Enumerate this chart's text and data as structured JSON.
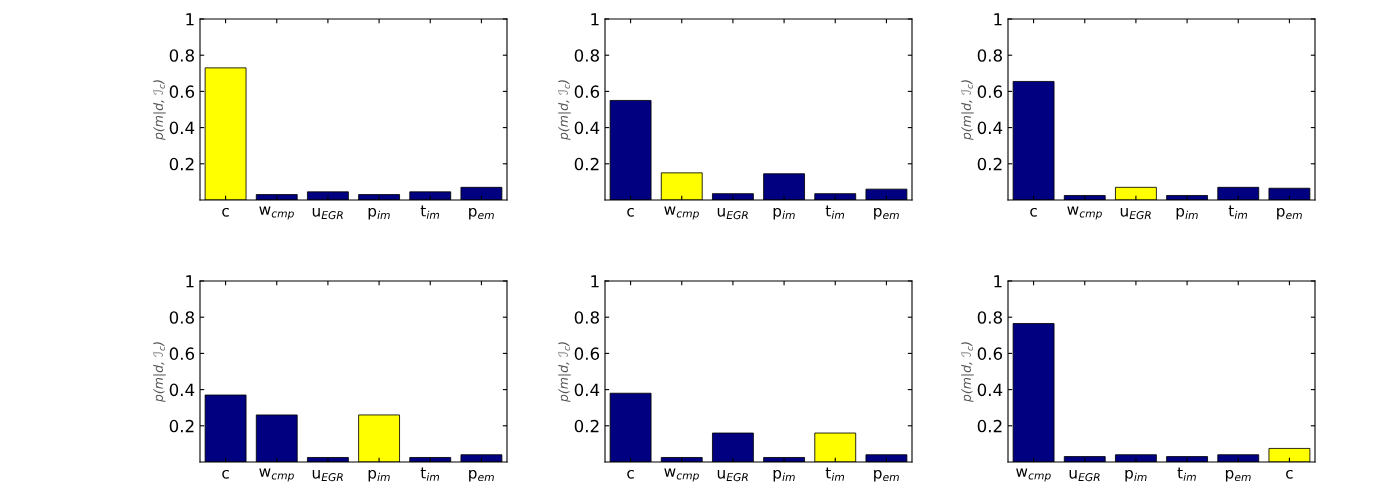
{
  "chart_data": [
    {
      "type": "bar",
      "ylabel": "p(m|d, ℐ$_{c}$)",
      "categories": [
        "c",
        "w$_{cmp}$",
        "u$_{EGR}$",
        "p$_{im}$",
        "t$_{im}$",
        "p$_{em}$"
      ],
      "values": [
        0.73,
        0.03,
        0.045,
        0.03,
        0.045,
        0.07
      ],
      "colors": [
        "#ffff00",
        "#000080",
        "#000080",
        "#000080",
        "#000080",
        "#000080"
      ],
      "ylim": [
        0,
        1
      ],
      "yticks": [
        0.2,
        0.4,
        0.6,
        0.8,
        1
      ],
      "grid": false
    },
    {
      "type": "bar",
      "ylabel": "p(m|d, ℐ$_{c}$)",
      "categories": [
        "c",
        "w$_{cmp}$",
        "u$_{EGR}$",
        "p$_{im}$",
        "t$_{im}$",
        "p$_{em}$"
      ],
      "values": [
        0.55,
        0.15,
        0.035,
        0.145,
        0.035,
        0.06
      ],
      "colors": [
        "#000080",
        "#ffff00",
        "#000080",
        "#000080",
        "#000080",
        "#000080"
      ],
      "ylim": [
        0,
        1
      ],
      "yticks": [
        0.2,
        0.4,
        0.6,
        0.8,
        1
      ],
      "grid": false
    },
    {
      "type": "bar",
      "ylabel": "p(m|d, ℐ$_{c}$)",
      "categories": [
        "c",
        "w$_{cmp}$",
        "u$_{EGR}$",
        "p$_{im}$",
        "t$_{im}$",
        "p$_{em}$"
      ],
      "values": [
        0.655,
        0.025,
        0.07,
        0.025,
        0.07,
        0.065
      ],
      "colors": [
        "#000080",
        "#000080",
        "#ffff00",
        "#000080",
        "#000080",
        "#000080"
      ],
      "ylim": [
        0,
        1
      ],
      "yticks": [
        0.2,
        0.4,
        0.6,
        0.8,
        1
      ],
      "grid": false
    },
    {
      "type": "bar",
      "ylabel": "p(m|d, ℐ$_{c}$)",
      "categories": [
        "c",
        "w$_{cmp}$",
        "u$_{EGR}$",
        "p$_{im}$",
        "t$_{im}$",
        "p$_{em}$"
      ],
      "values": [
        0.37,
        0.26,
        0.025,
        0.26,
        0.025,
        0.04
      ],
      "colors": [
        "#000080",
        "#000080",
        "#000080",
        "#ffff00",
        "#000080",
        "#000080"
      ],
      "ylim": [
        0,
        1
      ],
      "yticks": [
        0.2,
        0.4,
        0.6,
        0.8,
        1
      ],
      "grid": false
    },
    {
      "type": "bar",
      "ylabel": "p(m|d, ℐ$_{c}$)",
      "categories": [
        "c",
        "w$_{cmp}$",
        "u$_{EGR}$",
        "p$_{im}$",
        "t$_{im}$",
        "p$_{em}$"
      ],
      "values": [
        0.38,
        0.025,
        0.16,
        0.025,
        0.16,
        0.04
      ],
      "colors": [
        "#000080",
        "#000080",
        "#000080",
        "#000080",
        "#ffff00",
        "#000080"
      ],
      "ylim": [
        0,
        1
      ],
      "yticks": [
        0.2,
        0.4,
        0.6,
        0.8,
        1
      ],
      "grid": false
    },
    {
      "type": "bar",
      "ylabel": "p(m|d, ℐ$_{c}$)",
      "categories": [
        "w$_{cmp}$",
        "u$_{EGR}$",
        "p$_{im}$",
        "t$_{im}$",
        "p$_{em}$",
        "c"
      ],
      "values": [
        0.765,
        0.03,
        0.04,
        0.03,
        0.04,
        0.075
      ],
      "colors": [
        "#000080",
        "#000080",
        "#000080",
        "#000080",
        "#000080",
        "#ffff00"
      ],
      "ylim": [
        0,
        1
      ],
      "yticks": [
        0.2,
        0.4,
        0.6,
        0.8,
        1
      ],
      "grid": false
    }
  ]
}
